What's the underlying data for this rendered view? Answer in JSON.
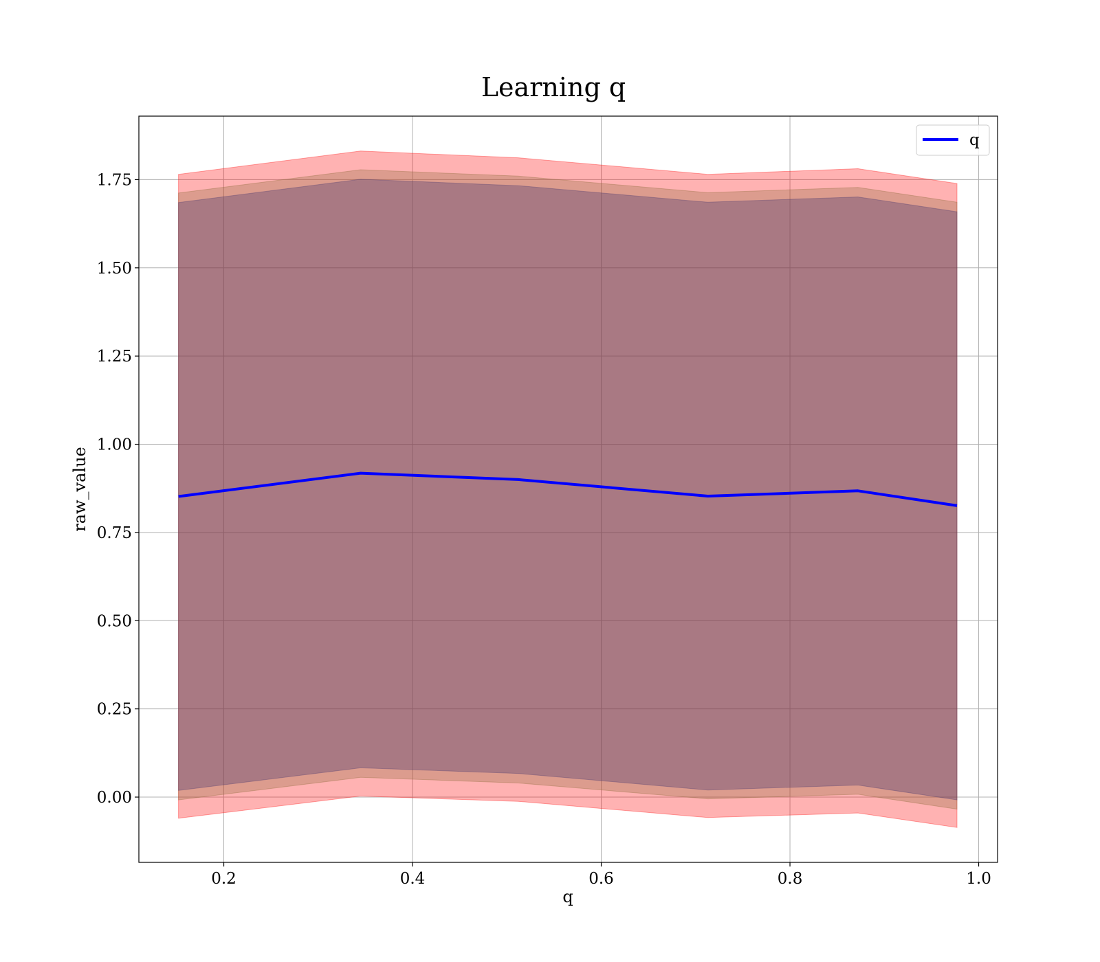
{
  "chart_data": {
    "type": "line",
    "title": "Learning q",
    "xlabel": "q",
    "ylabel": "raw_value",
    "xlim": [
      0.11,
      1.02
    ],
    "ylim": [
      -0.185,
      1.93
    ],
    "xticks": [
      0.2,
      0.4,
      0.6,
      0.8,
      1.0
    ],
    "xtick_labels": [
      "0.2",
      "0.4",
      "0.6",
      "0.8",
      "1.0"
    ],
    "yticks": [
      0.0,
      0.25,
      0.5,
      0.75,
      1.0,
      1.25,
      1.5,
      1.75
    ],
    "ytick_labels": [
      "0.00",
      "0.25",
      "0.50",
      "0.75",
      "1.00",
      "1.25",
      "1.50",
      "1.75"
    ],
    "grid": true,
    "legend_position": "top-right",
    "x": [
      0.152,
      0.345,
      0.512,
      0.713,
      0.872,
      0.977
    ],
    "series": [
      {
        "name": "q",
        "color": "#0000ff",
        "values": [
          0.852,
          0.918,
          0.9,
          0.853,
          0.868,
          0.826
        ]
      }
    ],
    "bands": [
      {
        "color": "#ff0000",
        "opacity": 0.3,
        "lower": [
          -0.06,
          0.003,
          -0.012,
          -0.058,
          -0.045,
          -0.086
        ],
        "upper": [
          1.765,
          1.831,
          1.812,
          1.765,
          1.781,
          1.739
        ]
      },
      {
        "color": "#8b6b3a",
        "opacity": 0.3,
        "lower": [
          -0.008,
          0.056,
          0.04,
          -0.005,
          0.008,
          -0.034
        ],
        "upper": [
          1.712,
          1.778,
          1.76,
          1.713,
          1.728,
          1.686
        ]
      },
      {
        "color": "#4a3a70",
        "opacity": 0.35,
        "lower": [
          0.019,
          0.083,
          0.067,
          0.02,
          0.034,
          -0.008
        ],
        "upper": [
          1.685,
          1.751,
          1.733,
          1.686,
          1.701,
          1.659
        ]
      }
    ]
  }
}
